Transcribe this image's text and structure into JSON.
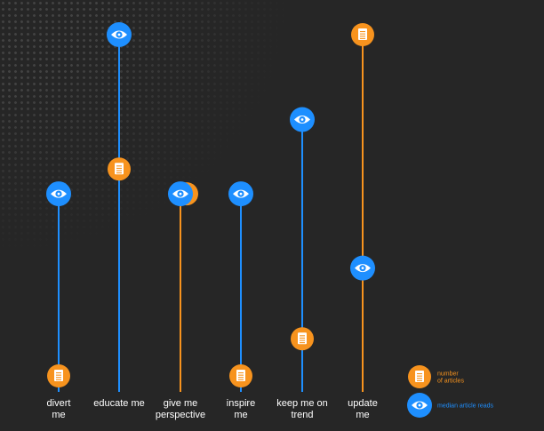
{
  "chart_data": {
    "type": "dot_plot",
    "categories": [
      [
        "divert",
        "me"
      ],
      [
        "educate me"
      ],
      [
        "give me",
        "perspective"
      ],
      [
        "inspire",
        "me"
      ],
      [
        "keep me on",
        "trend"
      ],
      [
        "update",
        "me"
      ]
    ],
    "series": [
      {
        "name": "number of articles",
        "icon": "document-icon",
        "color": "#F7931E",
        "values": [
          0.05,
          0.62,
          0.55,
          0.06,
          0.14,
          1.0
        ]
      },
      {
        "name": "median article reads",
        "icon": "eye-icon",
        "color": "#1E8FFF",
        "values": [
          0.55,
          1.0,
          0.55,
          0.55,
          0.76,
          0.34
        ]
      }
    ],
    "legend": {
      "position": "bottom-right",
      "items": [
        {
          "label_lines": [
            "number",
            "of articles"
          ],
          "icon": "document-icon",
          "color": "#F7931E"
        },
        {
          "label_lines": [
            "median article reads"
          ],
          "icon": "eye-icon",
          "color": "#1E8FFF"
        }
      ]
    },
    "ylim": [
      0,
      1
    ],
    "grid": false
  }
}
